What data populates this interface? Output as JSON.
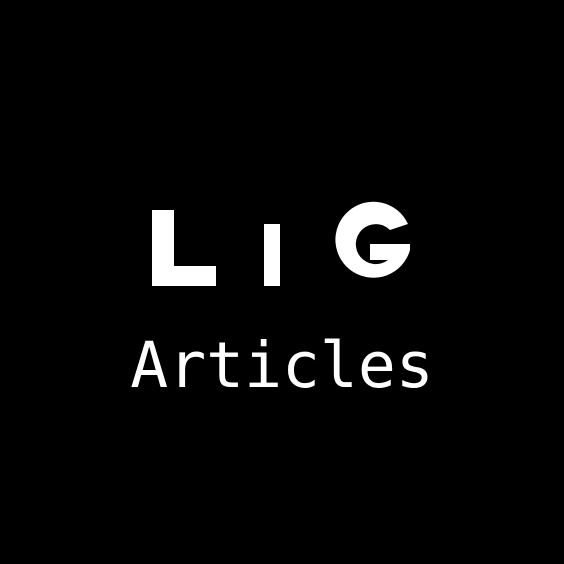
{
  "logo": {
    "text": "LIG",
    "color": "#ffffff"
  },
  "subtitle": "Articles",
  "colors": {
    "background": "#000000",
    "foreground": "#ffffff"
  }
}
